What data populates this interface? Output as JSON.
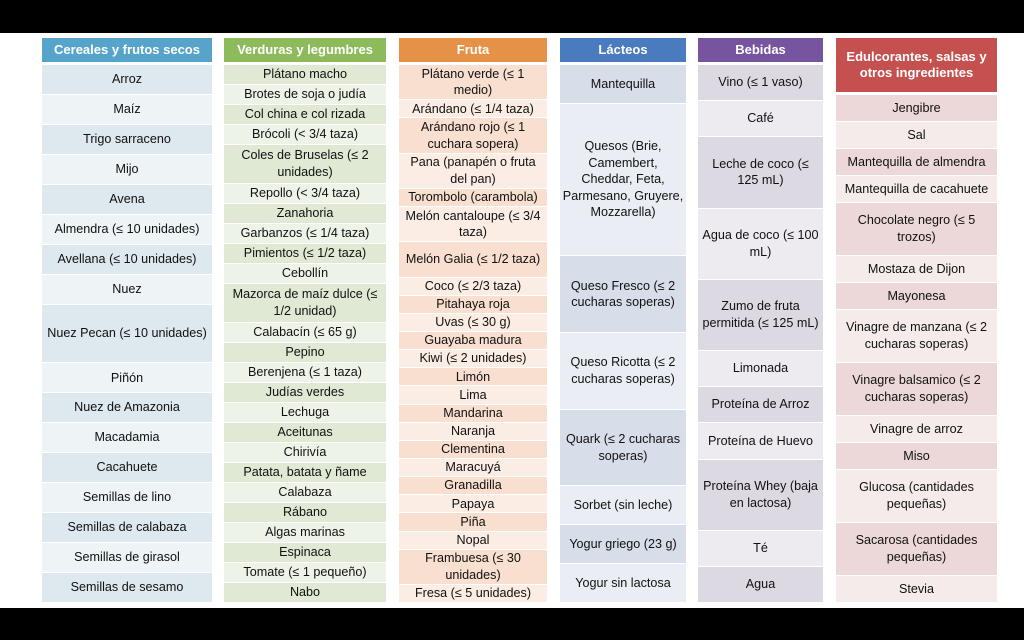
{
  "columns": [
    {
      "header": "Cereales y frutos secos",
      "items": [
        "Arroz",
        "Maíz",
        "Trigo sarraceno",
        "Mijo",
        "Avena",
        "Almendra (≤ 10 unidades)",
        "Avellana (≤ 10 unidades)",
        "Nuez",
        "Nuez Pecan (≤ 10 unidades)",
        "Piñón",
        "Nuez de Amazonia",
        "Macadamia",
        "Cacahuete",
        "Semillas de lino",
        "Semillas de calabaza",
        "Semillas de girasol",
        "Semillas de sesamo"
      ]
    },
    {
      "header": "Verduras y legumbres",
      "items": [
        "Plátano macho",
        "Brotes de soja o judía",
        "Col china e col rizada",
        "Brócoli (< 3/4 taza)",
        "Coles de Bruselas (≤ 2 unidades)",
        "Repollo (< 3/4 taza)",
        "Zanahoria",
        "Garbanzos (≤ 1/4 taza)",
        "Pimientos  (≤ 1/2 taza)",
        "Cebollín",
        "Mazorca de maíz dulce (≤ 1/2 unidad)",
        "Calabacín (≤ 65 g)",
        "Pepino",
        "Berenjena (≤ 1 taza)",
        "Judías verdes",
        "Lechuga",
        "Aceitunas",
        "Chirivía",
        "Patata, batata y ñame",
        "Calabaza",
        "Rábano",
        "Algas marinas",
        "Espinaca",
        "Tomate (≤ 1 pequeño)",
        "Nabo"
      ]
    },
    {
      "header": "Fruta",
      "items": [
        "Plátano verde (≤ 1 medio)",
        "Arándano (≤ 1/4 taza)",
        "Arándano rojo (≤ 1 cuchara sopera)",
        "Pana (panapén o fruta del pan)",
        "Torombolo (carambola)",
        "Melón cantaloupe (≤ 3/4 taza)",
        "Melón Galia (≤ 1/2 taza)",
        "Coco (≤ 2/3 taza)",
        "Pitahaya roja",
        "Uvas (≤ 30 g)",
        "Guayaba madura",
        "Kiwi (≤ 2 unidades)",
        "Limón",
        "Lima",
        "Mandarina",
        "Naranja",
        "Clementina",
        "Maracuyá",
        "Granadilla",
        "Papaya",
        "Piña",
        "Nopal",
        "Frambuesa (≤ 30 unidades)",
        "Fresa (≤ 5 unidades)"
      ]
    },
    {
      "header": "Lácteos",
      "items": [
        "Mantequilla",
        "Quesos (Brie, Camembert, Cheddar, Feta, Parmesano, Gruyere, Mozzarella)",
        "Queso Fresco (≤ 2 cucharas soperas)",
        "Queso Ricotta (≤ 2 cucharas soperas)",
        "Quark (≤ 2 cucharas soperas)",
        "Sorbet (sin leche)",
        "Yogur griego (23 g)",
        "Yogur sin lactosa"
      ]
    },
    {
      "header": "Bebidas",
      "items": [
        "Vino (≤ 1 vaso)",
        "Café",
        "Leche de coco (≤ 125 mL)",
        "Agua de coco (≤ 100 mL)",
        "Zumo de fruta permitida (≤ 125 mL)",
        "Limonada",
        "Proteína de Arroz",
        "Proteína de Huevo",
        "Proteína Whey (baja en lactosa)",
        "Té",
        "Agua"
      ]
    },
    {
      "header": "Edulcorantes, salsas y otros ingredientes",
      "items": [
        "Jengibre",
        "Sal",
        "Mantequilla de almendra",
        "Mantequilla de cacahuete",
        "Chocolate negro (≤ 5 trozos)",
        "Mostaza de Dijon",
        "Mayonesa",
        "Vinagre de manzana (≤ 2 cucharas soperas)",
        "Vinagre balsamico (≤ 2 cucharas soperas)",
        "Vinagre de arroz",
        "Miso",
        "Glucosa (cantidades pequeñas)",
        "Sacarosa (cantidades pequeñas)",
        "Stevia"
      ]
    }
  ]
}
